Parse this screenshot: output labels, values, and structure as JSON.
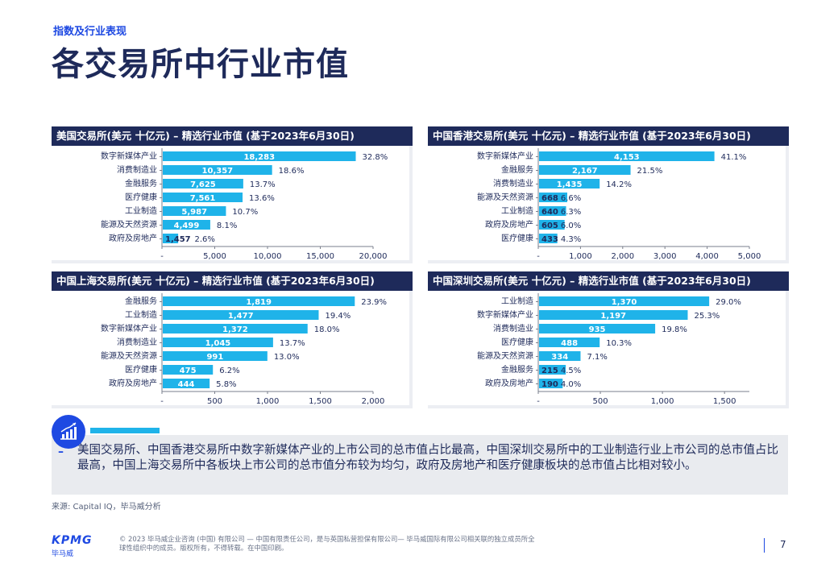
{
  "header": {
    "section_label": "指数及行业表现",
    "title": "各交易所中行业市值"
  },
  "colors": {
    "bar": "#1fb3e9",
    "navy": "#1e2a5a",
    "accent_blue": "#1e49e2"
  },
  "chart_data": [
    {
      "type": "bar",
      "orientation": "horizontal",
      "title": "美国交易所(美元 十亿元) – 精选行业市值 (基于2023年6月30日)",
      "categories": [
        "数字新媒体产业",
        "消费制造业",
        "金融服务",
        "医疗健康",
        "工业制造",
        "能源及天然资源",
        "政府及房地产"
      ],
      "values": [
        18283,
        10357,
        7625,
        7561,
        5987,
        4499,
        1457
      ],
      "value_labels": [
        "18,283",
        "10,357",
        "7,625",
        "7,561",
        "5,987",
        "4,499",
        "1,457"
      ],
      "percent_labels": [
        "32.8%",
        "18.6%",
        "13.7%",
        "13.6%",
        "10.7%",
        "8.1%",
        "2.6%"
      ],
      "xlim": [
        0,
        20000
      ],
      "ticks": [
        0,
        5000,
        10000,
        15000,
        20000
      ],
      "tick_labels": [
        "-",
        "5,000",
        "10,000",
        "15,000",
        "20,000"
      ]
    },
    {
      "type": "bar",
      "orientation": "horizontal",
      "title": "中国香港交易所(美元 十亿元) – 精选行业市值 (基于2023年6月30日)",
      "categories": [
        "数字新媒体产业",
        "金融服务",
        "消费制造业",
        "能源及天然资源",
        "工业制造",
        "政府及房地产",
        "医疗健康"
      ],
      "values": [
        4153,
        2167,
        1435,
        668,
        640,
        605,
        433
      ],
      "value_labels": [
        "4,153",
        "2,167",
        "1,435",
        "668",
        "640",
        "605",
        "433"
      ],
      "percent_labels": [
        "41.1%",
        "21.5%",
        "14.2%",
        "6.6%",
        "6.3%",
        "6.0%",
        "4.3%"
      ],
      "xlim": [
        0,
        5000
      ],
      "ticks": [
        0,
        1000,
        2000,
        3000,
        4000,
        5000
      ],
      "tick_labels": [
        "-",
        "1,000",
        "2,000",
        "3,000",
        "4,000",
        "5,000"
      ]
    },
    {
      "type": "bar",
      "orientation": "horizontal",
      "title": "中国上海交易所(美元 十亿元) – 精选行业市值 (基于2023年6月30日)",
      "categories": [
        "金融服务",
        "工业制造",
        "数字新媒体产业",
        "消费制造业",
        "能源及天然资源",
        "医疗健康",
        "政府及房地产"
      ],
      "values": [
        1819,
        1477,
        1372,
        1045,
        991,
        475,
        444
      ],
      "value_labels": [
        "1,819",
        "1,477",
        "1,372",
        "1,045",
        "991",
        "475",
        "444"
      ],
      "percent_labels": [
        "23.9%",
        "19.4%",
        "18.0%",
        "13.7%",
        "13.0%",
        "6.2%",
        "5.8%"
      ],
      "xlim": [
        0,
        2000
      ],
      "ticks": [
        0,
        500,
        1000,
        1500,
        2000
      ],
      "tick_labels": [
        "-",
        "500",
        "1,000",
        "1,500",
        "2,000"
      ]
    },
    {
      "type": "bar",
      "orientation": "horizontal",
      "title": "中国深圳交易所(美元 十亿元) – 精选行业市值 (基于2023年6月30日)",
      "categories": [
        "工业制造",
        "数字新媒体产业",
        "消费制造业",
        "医疗健康",
        "能源及天然资源",
        "金融服务",
        "政府及房地产"
      ],
      "values": [
        1370,
        1197,
        935,
        488,
        334,
        215,
        190
      ],
      "value_labels": [
        "1,370",
        "1,197",
        "935",
        "488",
        "334",
        "215",
        "190"
      ],
      "percent_labels": [
        "29.0%",
        "25.3%",
        "19.8%",
        "10.3%",
        "7.1%",
        "4.5%",
        "4.0%"
      ],
      "xlim": [
        0,
        1700
      ],
      "ticks": [
        0,
        500,
        1000,
        1500
      ],
      "tick_labels": [
        "-",
        "500",
        "1,000",
        "1,500"
      ]
    }
  ],
  "summary": {
    "dash": "–",
    "text": "美国交易所、中国香港交易所中数字新媒体产业的上市公司的总市值占比最高，中国深圳交易所中的工业制造行业上市公司的总市值占比最高，中国上海交易所中各板块上市公司的总市值分布较为均匀，政府及房地产和医疗健康板块的总市值占比相对较小。"
  },
  "source": "来源: Capital IQ，毕马威分析",
  "footer": {
    "logo_text": "KPMG",
    "logo_cn": "毕马威",
    "copyright": "© 2023 毕马威企业咨询 (中国) 有限公司 — 中国有限责任公司，是与英国私营担保有限公司— 毕马威国际有限公司相关联的独立成员所全球性组织中的成员。版权所有，不得转载。在中国印刷。",
    "page_number": "7"
  }
}
